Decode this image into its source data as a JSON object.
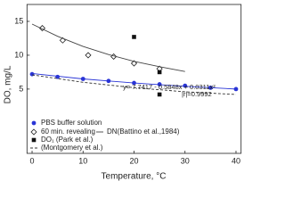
{
  "chart_data": {
    "type": "scatter",
    "x_label": "Temperature, °C",
    "y_label": "DO, mg/L",
    "xlim": [
      -1,
      41
    ],
    "xticks": [
      0,
      10,
      20,
      30,
      40
    ],
    "ylim": [
      -4.5,
      17.5
    ],
    "yticks": [
      5,
      10,
      15
    ],
    "annotations": [
      "y= 7.7417 - 0.5848x + 0.0311x²",
      "|r|=0.9992"
    ],
    "series": [
      {
        "name": "PBS buffer solution",
        "color": "#2a35d6",
        "marker": "circle",
        "x": [
          0,
          5,
          10,
          15,
          20,
          25,
          30,
          35,
          40
        ],
        "values": [
          7.2,
          6.8,
          6.5,
          6.2,
          5.9,
          5.7,
          5.5,
          5.2,
          5.0
        ]
      },
      {
        "name": "60 min. revealing",
        "color": "#222222",
        "marker": "diamond",
        "x": [
          2,
          6,
          11,
          16,
          20,
          25
        ],
        "values": [
          14.0,
          12.2,
          10.0,
          9.8,
          8.8,
          8.0
        ]
      },
      {
        "name": "DN(Battino et al.,1984)",
        "color": "#444444",
        "marker": "line",
        "x": [
          0,
          5,
          10,
          15,
          20,
          25,
          30
        ],
        "values": [
          14.6,
          12.8,
          11.3,
          10.1,
          9.1,
          8.3,
          7.6
        ]
      },
      {
        "name": "DO₁ (Park et al.)",
        "color": "#111111",
        "marker": "square",
        "x": [
          20,
          25,
          25
        ],
        "values": [
          12.7,
          7.5,
          4.2
        ]
      },
      {
        "name": "(Montgomery et al.)",
        "color": "#333333",
        "marker": "dashed",
        "x": [
          0,
          10,
          20,
          30,
          40
        ],
        "values": [
          7.1,
          6.0,
          5.2,
          4.6,
          4.2
        ]
      },
      {
        "color": "#2a35d6",
        "marker": "line",
        "x": [
          0,
          10,
          20,
          30,
          40
        ],
        "values": [
          7.3,
          6.5,
          5.9,
          5.4,
          5.0
        ]
      }
    ]
  }
}
